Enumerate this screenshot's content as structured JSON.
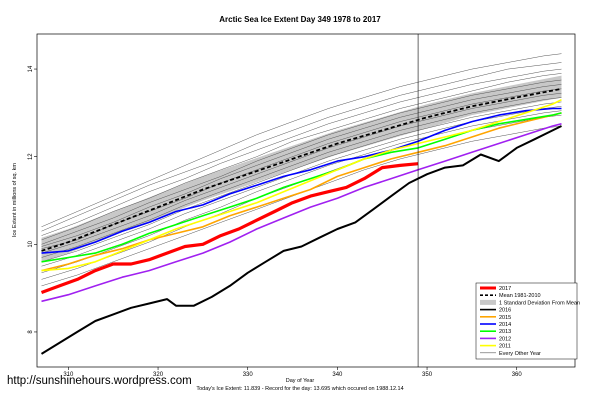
{
  "chart_data": {
    "type": "line",
    "title": "Arctic Sea Ice Extent Day 349 1978 to 2017",
    "xlabel": "Day of Year",
    "ylabel": "Ice Extent in millions of sq. km",
    "subcaption": "Today's Ice Extent: 11.839  -  Record for the day: 13.695 which occured on 1988.12.14",
    "watermark": "http://sunshinehours.wordpress.com",
    "xlim": [
      306.5,
      366.5
    ],
    "ylim": [
      7.2,
      14.8
    ],
    "x_ticks": [
      310,
      320,
      330,
      340,
      350,
      360
    ],
    "x_tick_labels": [
      "310",
      "320",
      "330",
      "340",
      "350",
      "360"
    ],
    "y_ticks": [
      8,
      10,
      12,
      14
    ],
    "y_tick_labels": [
      "8",
      "10",
      "12",
      "14"
    ],
    "current_day": 349,
    "grid": false,
    "legend_position": "bottom-right",
    "legend": [
      {
        "label": "2017",
        "color": "#ff0000",
        "style": "thick"
      },
      {
        "label": "Mean 1981-2010",
        "color": "#000000",
        "style": "dashed"
      },
      {
        "label": "1 Standard Deviation From Mean",
        "color": "#c8c8c8",
        "style": "band"
      },
      {
        "label": "2016",
        "color": "#000000",
        "style": "solid"
      },
      {
        "label": "2015",
        "color": "#ffa500",
        "style": "solid"
      },
      {
        "label": "2014",
        "color": "#0000ff",
        "style": "solid"
      },
      {
        "label": "2013",
        "color": "#00ff00",
        "style": "solid"
      },
      {
        "label": "2012",
        "color": "#a020f0",
        "style": "solid"
      },
      {
        "label": "2011",
        "color": "#ffff00",
        "style": "solid"
      },
      {
        "label": "Every Other Year",
        "color": "#555555",
        "style": "thin"
      }
    ],
    "mean_1981_2010": {
      "x": [
        307,
        310,
        315,
        320,
        325,
        330,
        335,
        340,
        345,
        350,
        355,
        360,
        365
      ],
      "y": [
        9.85,
        10.05,
        10.45,
        10.85,
        11.25,
        11.6,
        11.95,
        12.3,
        12.6,
        12.9,
        13.15,
        13.35,
        13.55
      ]
    },
    "std_band": {
      "x": [
        307,
        310,
        315,
        320,
        325,
        330,
        335,
        340,
        345,
        350,
        355,
        360,
        365
      ],
      "lower": [
        9.6,
        9.8,
        10.2,
        10.6,
        11.0,
        11.35,
        11.7,
        12.05,
        12.35,
        12.65,
        12.95,
        13.15,
        13.35
      ],
      "upper": [
        10.15,
        10.35,
        10.75,
        11.15,
        11.55,
        11.9,
        12.25,
        12.6,
        12.9,
        13.2,
        13.45,
        13.65,
        13.85
      ]
    },
    "series": [
      {
        "name": "2017",
        "color": "#ff0000",
        "width": 3.2,
        "x": [
          307,
          309,
          311,
          313,
          315,
          317,
          319,
          321,
          323,
          325,
          327,
          329,
          331,
          333,
          335,
          337,
          339,
          341,
          343,
          345,
          347,
          349
        ],
        "y": [
          8.9,
          9.05,
          9.2,
          9.4,
          9.55,
          9.55,
          9.65,
          9.8,
          9.95,
          10.0,
          10.2,
          10.35,
          10.55,
          10.75,
          10.95,
          11.1,
          11.2,
          11.3,
          11.5,
          11.75,
          11.8,
          11.84
        ]
      },
      {
        "name": "2016",
        "color": "#000000",
        "width": 2.0,
        "x": [
          307,
          309,
          311,
          313,
          315,
          317,
          319,
          321,
          322,
          324,
          326,
          328,
          330,
          332,
          334,
          336,
          338,
          340,
          342,
          344,
          346,
          348,
          350,
          352,
          354,
          356,
          358,
          360,
          362,
          364,
          365
        ],
        "y": [
          7.5,
          7.75,
          8.0,
          8.25,
          8.4,
          8.55,
          8.65,
          8.75,
          8.6,
          8.6,
          8.8,
          9.05,
          9.35,
          9.6,
          9.85,
          9.95,
          10.15,
          10.35,
          10.5,
          10.8,
          11.1,
          11.4,
          11.6,
          11.75,
          11.8,
          12.05,
          11.9,
          12.2,
          12.4,
          12.6,
          12.7
        ]
      },
      {
        "name": "2015",
        "color": "#ffa500",
        "width": 1.6,
        "x": [
          307,
          310,
          313,
          316,
          319,
          322,
          325,
          328,
          331,
          334,
          337,
          340,
          343,
          346,
          349,
          352,
          355,
          358,
          361,
          364,
          365
        ],
        "y": [
          9.4,
          9.55,
          9.75,
          9.9,
          10.1,
          10.25,
          10.4,
          10.65,
          10.85,
          11.05,
          11.25,
          11.55,
          11.75,
          11.95,
          12.1,
          12.25,
          12.45,
          12.65,
          12.8,
          12.95,
          13.0
        ]
      },
      {
        "name": "2014",
        "color": "#0000ff",
        "width": 1.6,
        "x": [
          307,
          310,
          313,
          316,
          319,
          322,
          325,
          328,
          331,
          334,
          337,
          340,
          343,
          346,
          349,
          352,
          355,
          358,
          361,
          364,
          365
        ],
        "y": [
          9.8,
          9.85,
          10.05,
          10.3,
          10.5,
          10.75,
          10.9,
          11.15,
          11.35,
          11.55,
          11.7,
          11.9,
          12.0,
          12.15,
          12.35,
          12.6,
          12.8,
          12.95,
          13.05,
          13.1,
          13.1
        ]
      },
      {
        "name": "2013",
        "color": "#00ff00",
        "width": 1.6,
        "x": [
          307,
          310,
          313,
          316,
          319,
          322,
          325,
          328,
          331,
          334,
          337,
          340,
          343,
          346,
          349,
          352,
          355,
          358,
          361,
          364,
          365
        ],
        "y": [
          9.6,
          9.7,
          9.8,
          10.0,
          10.25,
          10.45,
          10.65,
          10.85,
          11.05,
          11.3,
          11.5,
          11.7,
          11.95,
          12.1,
          12.2,
          12.4,
          12.6,
          12.75,
          12.85,
          12.95,
          13.0
        ]
      },
      {
        "name": "2012",
        "color": "#a020f0",
        "width": 1.6,
        "x": [
          307,
          310,
          313,
          316,
          319,
          322,
          325,
          328,
          331,
          334,
          337,
          340,
          343,
          346,
          349,
          352,
          355,
          358,
          361,
          364,
          365
        ],
        "y": [
          8.7,
          8.85,
          9.05,
          9.25,
          9.4,
          9.6,
          9.8,
          10.05,
          10.35,
          10.6,
          10.85,
          11.05,
          11.3,
          11.5,
          11.7,
          11.9,
          12.1,
          12.3,
          12.5,
          12.7,
          12.75
        ]
      },
      {
        "name": "2011",
        "color": "#ffff00",
        "width": 1.6,
        "x": [
          307,
          310,
          313,
          316,
          319,
          322,
          325,
          328,
          331,
          334,
          337,
          340,
          343,
          346,
          349,
          352,
          355,
          358,
          361,
          364,
          365
        ],
        "y": [
          9.4,
          9.45,
          9.6,
          9.85,
          10.1,
          10.35,
          10.55,
          10.75,
          10.95,
          11.2,
          11.45,
          11.7,
          11.95,
          12.15,
          12.3,
          12.45,
          12.6,
          12.8,
          13.0,
          13.2,
          13.3
        ]
      }
    ],
    "background_years": {
      "x": [
        307,
        311,
        315,
        319,
        323,
        327,
        331,
        335,
        339,
        343,
        347,
        351,
        355,
        359,
        363,
        365
      ],
      "color": "#555555",
      "lines": [
        [
          10.4,
          10.75,
          11.1,
          11.45,
          11.8,
          12.15,
          12.5,
          12.8,
          13.1,
          13.35,
          13.6,
          13.8,
          14.0,
          14.15,
          14.3,
          14.35
        ],
        [
          10.3,
          10.65,
          11.0,
          11.35,
          11.65,
          11.95,
          12.3,
          12.6,
          12.9,
          13.15,
          13.4,
          13.6,
          13.8,
          14.0,
          14.1,
          14.15
        ],
        [
          10.2,
          10.5,
          10.85,
          11.2,
          11.5,
          11.85,
          12.15,
          12.45,
          12.75,
          13.0,
          13.25,
          13.45,
          13.65,
          13.8,
          13.95,
          14.0
        ],
        [
          10.1,
          10.4,
          10.75,
          11.05,
          11.4,
          11.7,
          12.0,
          12.35,
          12.6,
          12.85,
          13.1,
          13.3,
          13.5,
          13.7,
          13.85,
          13.9
        ],
        [
          10.0,
          10.3,
          10.6,
          10.95,
          11.25,
          11.55,
          11.9,
          12.2,
          12.5,
          12.75,
          13.0,
          13.2,
          13.4,
          13.55,
          13.7,
          13.75
        ],
        [
          9.95,
          10.2,
          10.5,
          10.85,
          11.15,
          11.5,
          11.8,
          12.1,
          12.4,
          12.65,
          12.9,
          13.1,
          13.3,
          13.45,
          13.6,
          13.65
        ],
        [
          9.9,
          10.1,
          10.45,
          10.75,
          11.05,
          11.4,
          11.7,
          12.0,
          12.3,
          12.55,
          12.8,
          13.0,
          13.2,
          13.35,
          13.5,
          13.55
        ],
        [
          9.8,
          10.05,
          10.35,
          10.65,
          11.0,
          11.3,
          11.6,
          11.9,
          12.2,
          12.45,
          12.7,
          12.9,
          13.1,
          13.25,
          13.4,
          13.45
        ],
        [
          9.7,
          9.95,
          10.25,
          10.55,
          10.9,
          11.2,
          11.5,
          11.8,
          12.1,
          12.35,
          12.6,
          12.8,
          13.0,
          13.15,
          13.3,
          13.35
        ],
        [
          9.6,
          9.85,
          10.15,
          10.45,
          10.8,
          11.1,
          11.4,
          11.7,
          12.0,
          12.25,
          12.5,
          12.7,
          12.9,
          13.05,
          13.2,
          13.25
        ],
        [
          9.5,
          9.75,
          10.05,
          10.35,
          10.7,
          11.0,
          11.3,
          11.6,
          11.9,
          12.15,
          12.4,
          12.6,
          12.8,
          12.95,
          13.1,
          13.15
        ],
        [
          9.35,
          9.6,
          9.9,
          10.2,
          10.55,
          10.85,
          11.2,
          11.5,
          11.8,
          12.05,
          12.3,
          12.5,
          12.7,
          12.85,
          13.0,
          13.05
        ],
        [
          9.2,
          9.45,
          9.75,
          10.05,
          10.4,
          10.7,
          11.05,
          11.35,
          11.65,
          11.95,
          12.2,
          12.4,
          12.6,
          12.75,
          12.9,
          12.95
        ],
        [
          9.05,
          9.3,
          9.6,
          9.9,
          10.2,
          10.5,
          10.8,
          11.1,
          11.4,
          11.7,
          11.95,
          12.15,
          12.35,
          12.5,
          12.65,
          12.7
        ]
      ]
    }
  }
}
